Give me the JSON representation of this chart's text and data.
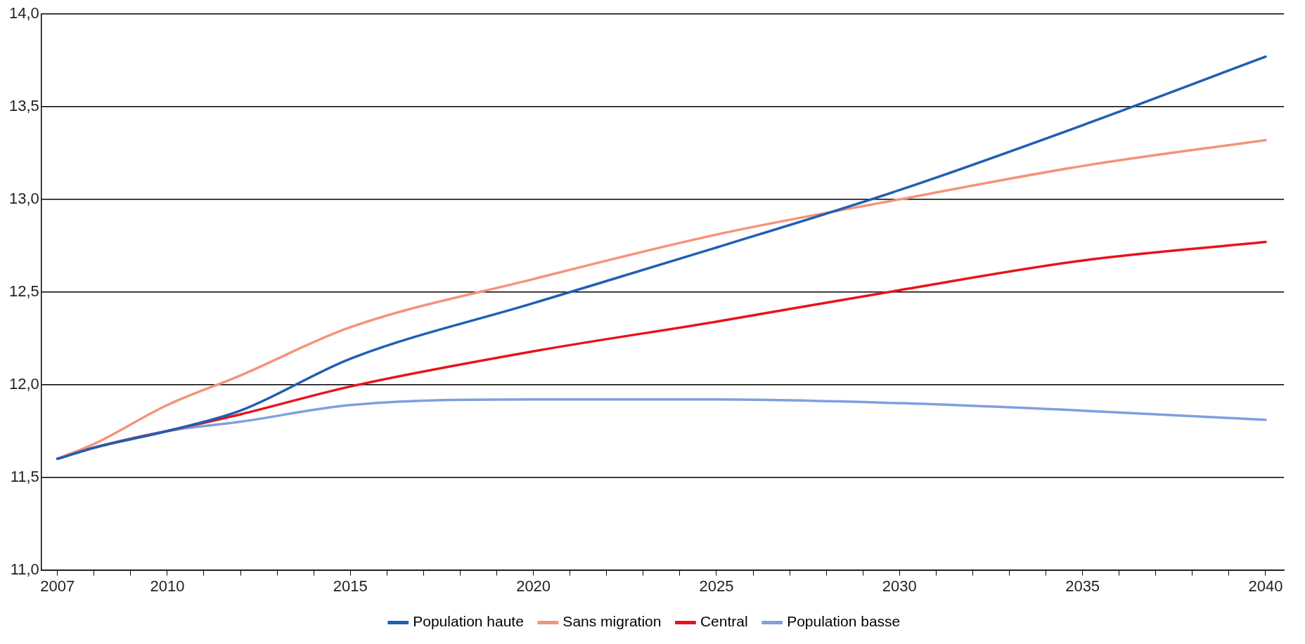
{
  "chart_data": {
    "type": "line",
    "x": [
      2007,
      2008,
      2010,
      2012,
      2015,
      2020,
      2025,
      2030,
      2035,
      2040
    ],
    "xlim": [
      2006.56,
      2040.5
    ],
    "xticks": [
      2007,
      {
        "value": 2008,
        "label": null
      },
      {
        "value": 2009,
        "label": null
      },
      2010,
      {
        "value": 2011,
        "label": null
      },
      {
        "value": 2012,
        "label": null
      },
      {
        "value": 2013,
        "label": null
      },
      {
        "value": 2014,
        "label": null
      },
      2015,
      {
        "value": 2016,
        "label": null
      },
      {
        "value": 2017,
        "label": null
      },
      {
        "value": 2018,
        "label": null
      },
      {
        "value": 2019,
        "label": null
      },
      2020,
      {
        "value": 2021,
        "label": null
      },
      {
        "value": 2022,
        "label": null
      },
      {
        "value": 2023,
        "label": null
      },
      {
        "value": 2024,
        "label": null
      },
      2025,
      {
        "value": 2026,
        "label": null
      },
      {
        "value": 2027,
        "label": null
      },
      {
        "value": 2028,
        "label": null
      },
      {
        "value": 2029,
        "label": null
      },
      2030,
      {
        "value": 2031,
        "label": null
      },
      {
        "value": 2032,
        "label": null
      },
      {
        "value": 2033,
        "label": null
      },
      {
        "value": 2034,
        "label": null
      },
      2035,
      {
        "value": 2036,
        "label": null
      },
      {
        "value": 2037,
        "label": null
      },
      {
        "value": 2038,
        "label": null
      },
      {
        "value": 2039,
        "label": null
      },
      2040
    ],
    "ylim": [
      11,
      14
    ],
    "yticks": [
      {
        "value": 11,
        "label": "11,0"
      },
      {
        "value": 11.5,
        "label": "11,5"
      },
      {
        "value": 12,
        "label": "12,0"
      },
      {
        "value": 12.5,
        "label": "12,5"
      },
      {
        "value": 13,
        "label": "13,0"
      },
      {
        "value": 13.5,
        "label": "13,5"
      },
      {
        "value": 14,
        "label": "14,0"
      }
    ],
    "grid": "y",
    "legend": "bottom",
    "marker": "none",
    "line_style": "solid",
    "series": [
      {
        "name": "Population haute",
        "color": "#1f5fb4",
        "values": [
          11.6,
          11.66,
          11.75,
          11.86,
          12.14,
          12.44,
          12.74,
          13.05,
          13.4,
          13.77
        ]
      },
      {
        "name": "Sans migration",
        "color": "#f4937a",
        "values": [
          11.6,
          11.68,
          11.89,
          12.05,
          12.31,
          12.57,
          12.81,
          13.0,
          13.18,
          13.32
        ]
      },
      {
        "name": "Central",
        "color": "#e8131a",
        "values": [
          11.6,
          11.66,
          11.75,
          11.84,
          11.99,
          12.18,
          12.34,
          12.51,
          12.67,
          12.77
        ]
      },
      {
        "name": "Population basse",
        "color": "#7f9fdf",
        "values": [
          11.6,
          11.66,
          11.75,
          11.8,
          11.89,
          11.92,
          11.92,
          11.9,
          11.86,
          11.81
        ]
      }
    ]
  }
}
